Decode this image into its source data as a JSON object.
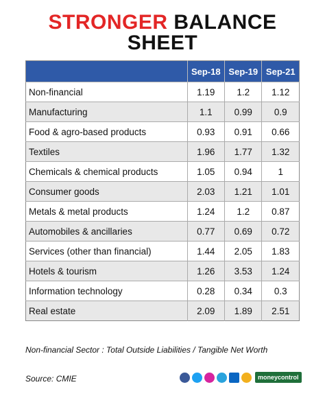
{
  "title": {
    "highlight": "STRONGER",
    "text": "BALANCE SHEET"
  },
  "table": {
    "columns": [
      "Sep-18",
      "Sep-19",
      "Sep-21"
    ],
    "rows": [
      [
        "Non-financial",
        1.19,
        1.2,
        1.12
      ],
      [
        "Manufacturing",
        1.1,
        0.99,
        0.9
      ],
      [
        "Food & agro-based products",
        0.93,
        0.91,
        0.66
      ],
      [
        "Textiles",
        1.96,
        1.77,
        1.32
      ],
      [
        "Chemicals & chemical products",
        1.05,
        0.94,
        1
      ],
      [
        "Consumer goods",
        2.03,
        1.21,
        1.01
      ],
      [
        "Metals & metal products",
        1.24,
        1.2,
        0.87
      ],
      [
        "Automobiles & ancillaries",
        0.77,
        0.69,
        0.72
      ],
      [
        "Services (other than financial)",
        1.44,
        2.05,
        1.83
      ],
      [
        "Hotels & tourism",
        1.26,
        3.53,
        1.24
      ],
      [
        "Information technology",
        0.28,
        0.34,
        0.3
      ],
      [
        "Real estate",
        2.09,
        1.89,
        2.51
      ]
    ]
  },
  "footnote": "Non-financial Sector : Total Outside Liabilities / Tangible Net Worth",
  "source": "Source: CMIE",
  "brand": "moneycontrol"
}
